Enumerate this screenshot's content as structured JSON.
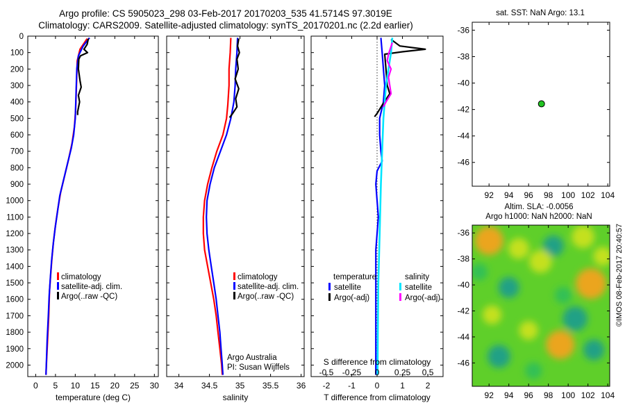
{
  "header": {
    "line1": "Argo profile: CS 5905023_298 03-Feb-2017 20170203_535 41.5714S 97.3019E",
    "line2": "Climatology: CARS2009. Satellite-adjusted climatology: synTS_20170201.nc (2.2d earlier)"
  },
  "colors": {
    "climatology": "#ff0000",
    "satellite": "#0000ff",
    "argo": "#000000",
    "sal_satellite": "#00e5ff",
    "sal_argo": "#ff00ff",
    "marker": "#22c322"
  },
  "depth_ticks": [
    0,
    100,
    200,
    300,
    400,
    500,
    600,
    700,
    800,
    900,
    1000,
    1100,
    1200,
    1300,
    1400,
    1500,
    1600,
    1700,
    1800,
    1900,
    2000
  ],
  "chart_data": [
    {
      "type": "line",
      "xlabel": "temperature (deg C)",
      "xticks": [
        "0",
        "5",
        "10",
        "15",
        "20",
        "25",
        "30"
      ],
      "xlim": [
        -2,
        31
      ],
      "ylim": [
        2070,
        0
      ],
      "legend": [
        "climatology",
        "satellite-adj. clim.",
        "Argo(..raw -QC)"
      ],
      "series": [
        {
          "name": "climatology",
          "points": [
            [
              13,
              15
            ],
            [
              11.2,
              80
            ],
            [
              10.5,
              150
            ],
            [
              10.3,
              300
            ],
            [
              10.1,
              450
            ],
            [
              9.8,
              550
            ],
            [
              9.2,
              650
            ],
            [
              8.3,
              750
            ],
            [
              7.3,
              850
            ],
            [
              6.3,
              950
            ],
            [
              5.6,
              1050
            ],
            [
              5.0,
              1150
            ],
            [
              4.5,
              1250
            ],
            [
              4.1,
              1350
            ],
            [
              3.8,
              1450
            ],
            [
              3.5,
              1550
            ],
            [
              3.3,
              1700
            ],
            [
              3.0,
              1850
            ],
            [
              2.7,
              2000
            ],
            [
              2.6,
              2060
            ]
          ]
        },
        {
          "name": "satellite-adj. clim.",
          "points": [
            [
              13.6,
              10
            ],
            [
              12.0,
              60
            ],
            [
              10.8,
              120
            ],
            [
              10.4,
              200
            ],
            [
              10.2,
              350
            ],
            [
              10.0,
              500
            ],
            [
              9.6,
              600
            ],
            [
              9.0,
              680
            ],
            [
              8.1,
              770
            ],
            [
              7.1,
              870
            ],
            [
              6.1,
              970
            ],
            [
              5.5,
              1070
            ],
            [
              4.9,
              1170
            ],
            [
              4.4,
              1270
            ],
            [
              4.0,
              1370
            ],
            [
              3.7,
              1470
            ],
            [
              3.4,
              1580
            ],
            [
              3.2,
              1700
            ],
            [
              2.9,
              1850
            ],
            [
              2.6,
              2060
            ]
          ]
        },
        {
          "name": "Argo(..raw -QC)",
          "points": [
            [
              13.3,
              15
            ],
            [
              13.0,
              50
            ],
            [
              12.2,
              80
            ],
            [
              13.1,
              100
            ],
            [
              11.3,
              120
            ],
            [
              10.9,
              140
            ],
            [
              10.8,
              200
            ],
            [
              11.2,
              270
            ],
            [
              11.5,
              310
            ],
            [
              10.8,
              360
            ],
            [
              11.1,
              400
            ],
            [
              10.6,
              460
            ],
            [
              10.6,
              480
            ]
          ]
        }
      ]
    },
    {
      "type": "line",
      "xlabel": "salinity",
      "xticks": [
        "34",
        "34.5",
        "35",
        "35.5",
        "36"
      ],
      "xlim": [
        33.8,
        36.05
      ],
      "ylim": [
        2070,
        0
      ],
      "legend": [
        "climatology",
        "satellite-adj. clim.",
        "Argo(..raw -QC)"
      ],
      "annotation": [
        "Argo Australia",
        "PI: Susan Wijffels"
      ],
      "series": [
        {
          "name": "climatology",
          "points": [
            [
              34.85,
              10
            ],
            [
              34.84,
              100
            ],
            [
              34.82,
              200
            ],
            [
              34.82,
              300
            ],
            [
              34.8,
              420
            ],
            [
              34.78,
              500
            ],
            [
              34.72,
              600
            ],
            [
              34.62,
              700
            ],
            [
              34.54,
              800
            ],
            [
              34.47,
              900
            ],
            [
              34.42,
              1000
            ],
            [
              34.4,
              1100
            ],
            [
              34.4,
              1200
            ],
            [
              34.42,
              1300
            ],
            [
              34.47,
              1400
            ],
            [
              34.52,
              1500
            ],
            [
              34.57,
              1600
            ],
            [
              34.61,
              1700
            ],
            [
              34.64,
              1800
            ],
            [
              34.67,
              1900
            ],
            [
              34.7,
              2000
            ],
            [
              34.71,
              2060
            ]
          ]
        },
        {
          "name": "satellite-adj. clim.",
          "points": [
            [
              34.96,
              10
            ],
            [
              34.95,
              100
            ],
            [
              34.93,
              200
            ],
            [
              34.92,
              300
            ],
            [
              34.9,
              400
            ],
            [
              34.85,
              500
            ],
            [
              34.78,
              600
            ],
            [
              34.68,
              700
            ],
            [
              34.58,
              800
            ],
            [
              34.51,
              900
            ],
            [
              34.46,
              1000
            ],
            [
              34.45,
              1100
            ],
            [
              34.46,
              1200
            ],
            [
              34.49,
              1300
            ],
            [
              34.53,
              1400
            ],
            [
              34.57,
              1500
            ],
            [
              34.61,
              1600
            ],
            [
              34.64,
              1700
            ],
            [
              34.67,
              1800
            ],
            [
              34.69,
              1900
            ],
            [
              34.71,
              2000
            ],
            [
              34.72,
              2060
            ]
          ]
        },
        {
          "name": "Argo(..raw -QC)",
          "points": [
            [
              34.98,
              15
            ],
            [
              34.96,
              60
            ],
            [
              34.99,
              100
            ],
            [
              34.95,
              140
            ],
            [
              34.97,
              200
            ],
            [
              34.92,
              260
            ],
            [
              34.98,
              320
            ],
            [
              34.93,
              380
            ],
            [
              34.95,
              430
            ],
            [
              34.88,
              470
            ],
            [
              34.83,
              495
            ]
          ]
        }
      ]
    },
    {
      "type": "line",
      "xlabel": "T difference from climatology",
      "xticks": [
        "-2",
        "-1",
        "0",
        "1",
        "2"
      ],
      "xlim": [
        -2.6,
        2.6
      ],
      "secondary_xlabel": "S difference from climatology",
      "secondary_xticks": [
        "-0.5",
        "-0.25",
        "0",
        "0.25",
        "0.5"
      ],
      "ylim": [
        2070,
        0
      ],
      "legend": {
        "temperature_heading": "temperature",
        "salinity_heading": "salinity",
        "items": [
          "satellite",
          "Argo(-adj)",
          "satellite",
          "Argo(-adj)"
        ]
      },
      "series": [
        {
          "name": "temperature satellite",
          "points": [
            [
              0.15,
              10
            ],
            [
              0.2,
              100
            ],
            [
              0.25,
              200
            ],
            [
              0.3,
              300
            ],
            [
              0.25,
              400
            ],
            [
              0.1,
              500
            ],
            [
              0.1,
              600
            ],
            [
              0.15,
              700
            ],
            [
              0.2,
              760
            ],
            [
              0.0,
              820
            ],
            [
              -0.05,
              900
            ],
            [
              0.0,
              1000
            ],
            [
              0.05,
              1100
            ],
            [
              0.0,
              1200
            ],
            [
              -0.05,
              1300
            ],
            [
              -0.05,
              1500
            ],
            [
              -0.05,
              1700
            ],
            [
              -0.05,
              1900
            ],
            [
              -0.05,
              2060
            ]
          ]
        },
        {
          "name": "temperature Argo(-adj)",
          "points": [
            [
              0.55,
              20
            ],
            [
              0.9,
              60
            ],
            [
              1.9,
              80
            ],
            [
              1.0,
              95
            ],
            [
              0.3,
              110
            ],
            [
              0.35,
              200
            ],
            [
              0.4,
              300
            ],
            [
              0.5,
              350
            ],
            [
              0.2,
              420
            ],
            [
              0.0,
              470
            ],
            [
              -0.1,
              490
            ]
          ]
        },
        {
          "name": "salinity satellite",
          "points": [
            [
              0.6,
              10
            ],
            [
              0.55,
              100
            ],
            [
              0.45,
              200
            ],
            [
              0.35,
              300
            ],
            [
              0.3,
              400
            ],
            [
              0.25,
              500
            ],
            [
              0.2,
              700
            ],
            [
              0.15,
              900
            ],
            [
              0.1,
              1200
            ],
            [
              0.05,
              1500
            ],
            [
              0.03,
              1800
            ],
            [
              0.02,
              2060
            ]
          ]
        },
        {
          "name": "salinity Argo(-adj)",
          "points": [
            [
              0.6,
              40
            ],
            [
              0.45,
              110
            ],
            [
              0.4,
              150
            ],
            [
              0.55,
              200
            ],
            [
              0.45,
              250
            ],
            [
              0.5,
              300
            ],
            [
              0.55,
              350
            ],
            [
              0.35,
              400
            ],
            [
              0.25,
              430
            ]
          ]
        }
      ]
    },
    {
      "type": "scatter",
      "title": "sat. SST: NaN Argo: 13.1",
      "xticks": [
        "92",
        "94",
        "96",
        "98",
        "100",
        "102",
        "104"
      ],
      "yticks": [
        "-36",
        "-38",
        "-40",
        "-42",
        "-44",
        "-46"
      ],
      "xlim": [
        90.3,
        104.2
      ],
      "ylim": [
        -35.4,
        -47.8
      ],
      "points": [
        [
          97.3,
          -41.57
        ]
      ]
    },
    {
      "type": "heatmap",
      "title_line1": "Altim. SLA: -0.0056",
      "title_line2": "Argo h1000: NaN h2000: NaN",
      "xticks": [
        "92",
        "94",
        "96",
        "98",
        "100",
        "102",
        "104"
      ],
      "yticks": [
        "-36",
        "-38",
        "-40",
        "-42",
        "-44",
        "-46"
      ],
      "xlim": [
        90.3,
        104.2
      ],
      "ylim": [
        -35.4,
        -47.8
      ],
      "blobs": [
        {
          "lon": 92.0,
          "lat": -36.6,
          "value": 0.9
        },
        {
          "lon": 95.0,
          "lat": -37.2,
          "value": 0.5
        },
        {
          "lon": 98.5,
          "lat": -37.0,
          "value": -0.5
        },
        {
          "lon": 101.5,
          "lat": -36.3,
          "value": 0.6
        },
        {
          "lon": 97.2,
          "lat": -38.2,
          "value": 0.6
        },
        {
          "lon": 94.0,
          "lat": -40.2,
          "value": -0.5
        },
        {
          "lon": 102.3,
          "lat": -39.9,
          "value": 1.0
        },
        {
          "lon": 99.5,
          "lat": -40.8,
          "value": -0.3
        },
        {
          "lon": 92.3,
          "lat": -42.3,
          "value": 0.4
        },
        {
          "lon": 100.7,
          "lat": -42.6,
          "value": -0.7
        },
        {
          "lon": 96.0,
          "lat": -43.5,
          "value": 0.4
        },
        {
          "lon": 99.2,
          "lat": -44.6,
          "value": 0.9
        },
        {
          "lon": 93.0,
          "lat": -45.5,
          "value": -0.6
        },
        {
          "lon": 96.5,
          "lat": -46.6,
          "value": -0.3
        },
        {
          "lon": 102.6,
          "lat": -45.0,
          "value": -0.5
        },
        {
          "lon": 103.5,
          "lat": -37.8,
          "value": 0.4
        },
        {
          "lon": 91.0,
          "lat": -39.0,
          "value": 0.3
        }
      ]
    }
  ],
  "stamp": "©IMOS 08-Feb-2017 20:40:57"
}
